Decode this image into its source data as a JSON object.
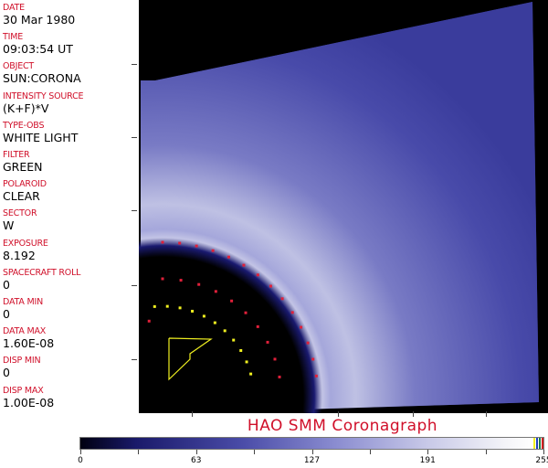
{
  "header_fields": [
    {
      "label": "DATE",
      "value": "30 Mar 1980"
    },
    {
      "label": "TIME",
      "value": "09:03:54 UT"
    },
    {
      "label": "OBJECT",
      "value": "SUN:CORONA"
    },
    {
      "label": "INTENSITY SOURCE",
      "value": "(K+F)*V"
    },
    {
      "label": "TYPE-OBS",
      "value": "WHITE LIGHT"
    },
    {
      "label": "FILTER",
      "value": "GREEN"
    },
    {
      "label": "POLAROID",
      "value": "CLEAR"
    },
    {
      "label": "SECTOR",
      "value": "W"
    },
    {
      "label": "EXPOSURE",
      "value": "8.192"
    },
    {
      "label": "SPACECRAFT ROLL",
      "value": "0"
    },
    {
      "label": "DATA MIN",
      "value": "0"
    },
    {
      "label": "DATA MAX",
      "value": "1.60E-08"
    },
    {
      "label": "DISP MIN",
      "value": "0"
    },
    {
      "label": "DISP MAX",
      "value": "1.00E-08"
    }
  ],
  "title": "HAO   SMM  Coronagraph",
  "colorbar": {
    "min": 0,
    "max": 255,
    "tick_labels": [
      "0",
      "63",
      "127",
      "191",
      "255"
    ],
    "colors": {
      "low": "#000010",
      "mid": "#4a4ca8",
      "high": "#ffffff"
    }
  },
  "colors": {
    "label": "#d0102a",
    "overlay_red": "#e0203a",
    "overlay_yellow": "#f0f020",
    "corona": "#3a3c9c"
  }
}
